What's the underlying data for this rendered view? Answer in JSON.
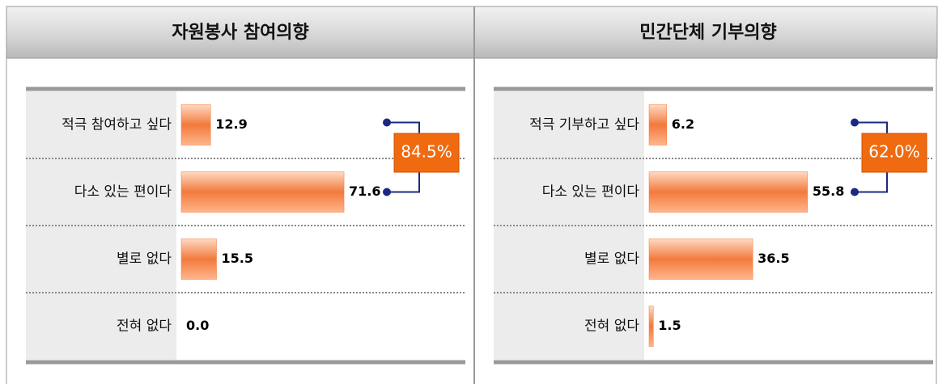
{
  "chart_data": [
    {
      "type": "hbar",
      "title": "자원봉사 참여의향",
      "categories": [
        "적극 참여하고 싶다",
        "다소 있는 편이다",
        "별로 없다",
        "전혀 없다"
      ],
      "values": [
        12.9,
        71.6,
        15.5,
        0.0
      ],
      "value_labels": [
        "12.9",
        "71.6",
        "15.5",
        "0.0"
      ],
      "xlim": [
        0,
        125
      ],
      "color": "#f27a3c",
      "annotation": "84.5%"
    },
    {
      "type": "hbar",
      "title": "민간단체 기부의향",
      "categories": [
        "적극 기부하고 싶다",
        "다소 있는 편이다",
        "별로 없다",
        "전혀 없다"
      ],
      "values": [
        6.2,
        55.8,
        36.5,
        1.5
      ],
      "value_labels": [
        "6.2",
        "55.8",
        "36.5",
        "1.5"
      ],
      "xlim": [
        0,
        100
      ],
      "color": "#f27a3c",
      "annotation": "62.0%"
    }
  ]
}
